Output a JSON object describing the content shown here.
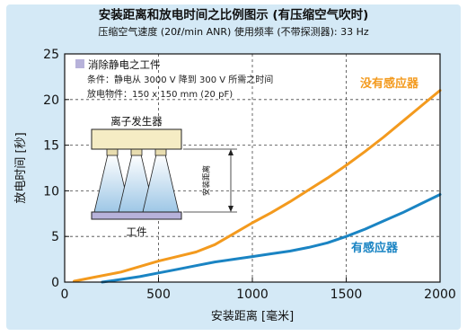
{
  "header": {
    "title": "安装距离和放电时间之比例图示 (有压缩空气吹时)",
    "subtitle": "压缩空气速度 (20ℓ/min ANR)    使用频率 (不带探测器): 33 Hz"
  },
  "legend_box": {
    "heading": "消除静电之工件",
    "line1": "条件：静电从 3000 V 降到 300 V 所需之时间",
    "line2": "放电物件：150 x 150 mm (20 pF)"
  },
  "inset": {
    "ionizer_label": "离子发生器",
    "distance_label": "安装距离",
    "workpiece_label": "工件"
  },
  "colors": {
    "background": "#d4e9f6",
    "plot_bg": "#ffffff",
    "without_sensor": "#f39a1e",
    "with_sensor": "#1a84c3",
    "legend_square": "#b7b2da"
  },
  "chart_data": {
    "type": "line",
    "xlabel": "安装距离 [毫米]",
    "ylabel": "放电时间 [秒]",
    "xlim": [
      0,
      2000
    ],
    "ylim": [
      0,
      25
    ],
    "xticks": [
      0,
      500,
      1000,
      1500,
      2000
    ],
    "yticks": [
      0,
      5,
      10,
      15,
      20,
      25
    ],
    "grid": "dashed",
    "series": [
      {
        "name": "没有感应器",
        "color": "#f39a1e",
        "x": [
          50,
          150,
          300,
          400,
          500,
          600,
          700,
          800,
          900,
          1000,
          1100,
          1200,
          1300,
          1400,
          1500,
          1600,
          1700,
          1800,
          1900,
          2000
        ],
        "y": [
          0.1,
          0.5,
          1.1,
          1.7,
          2.3,
          2.8,
          3.3,
          4.1,
          5.3,
          6.5,
          7.6,
          8.8,
          10.1,
          11.4,
          12.8,
          14.3,
          15.9,
          17.6,
          19.3,
          21.0
        ]
      },
      {
        "name": "有感应器",
        "color": "#1a84c3",
        "x": [
          200,
          300,
          400,
          500,
          600,
          700,
          800,
          900,
          1000,
          1100,
          1200,
          1300,
          1400,
          1500,
          1600,
          1700,
          1800,
          1900,
          2000
        ],
        "y": [
          0.0,
          0.3,
          0.6,
          1.0,
          1.4,
          1.8,
          2.2,
          2.5,
          2.8,
          3.1,
          3.4,
          3.8,
          4.3,
          5.0,
          5.8,
          6.7,
          7.6,
          8.6,
          9.6
        ]
      }
    ]
  }
}
